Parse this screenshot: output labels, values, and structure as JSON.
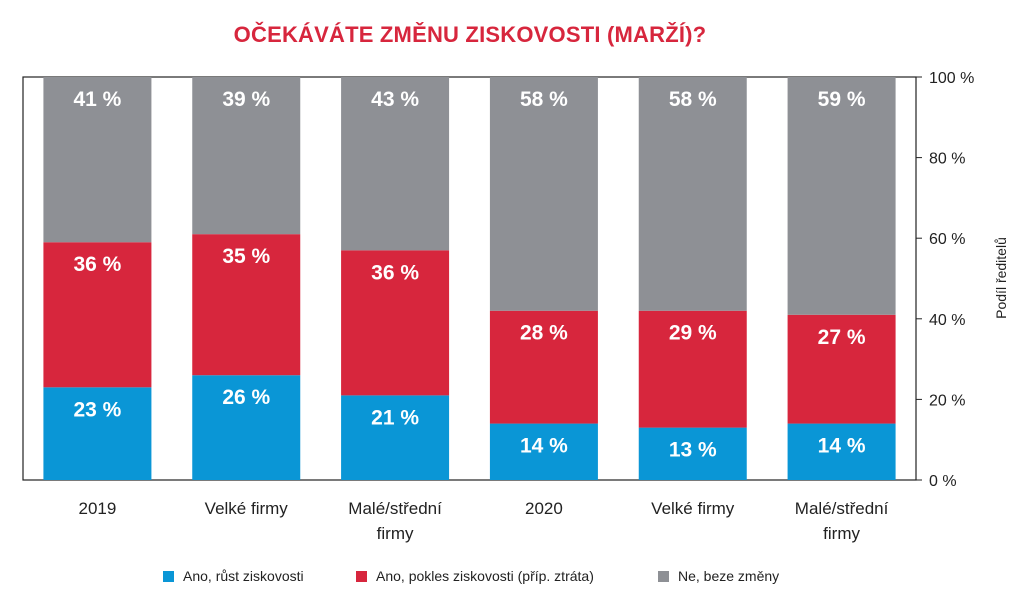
{
  "chart_data": {
    "type": "bar",
    "stacked": true,
    "title": "OČEKÁVÁTE ZMĚNU ZISKOVOSTI (MARŽÍ)?",
    "ylabel": "Podíl ředitelů",
    "ylim": [
      0,
      100
    ],
    "yticks": [
      "0 %",
      "20 %",
      "40 %",
      "60 %",
      "80 %",
      "100 %"
    ],
    "categories": [
      [
        "2019"
      ],
      [
        "Velké firmy"
      ],
      [
        "Malé/střední",
        "firmy"
      ],
      [
        "2020"
      ],
      [
        "Velké firmy"
      ],
      [
        "Malé/střední",
        "firmy"
      ]
    ],
    "series": [
      {
        "name": "Ano, růst ziskovosti",
        "color": "#0a96d6",
        "values": [
          23,
          26,
          21,
          14,
          13,
          14
        ],
        "labels": [
          "23 %",
          "26 %",
          "21 %",
          "14 %",
          "13 %",
          "14 %"
        ]
      },
      {
        "name": "Ano, pokles ziskovosti (příp. ztráta)",
        "color": "#d7263d",
        "values": [
          36,
          35,
          36,
          28,
          29,
          27
        ],
        "labels": [
          "36 %",
          "35 %",
          "36 %",
          "28 %",
          "29 %",
          "27 %"
        ]
      },
      {
        "name": "Ne, beze změny",
        "color": "#8e9095",
        "values": [
          41,
          39,
          43,
          58,
          58,
          59
        ],
        "labels": [
          "41 %",
          "39 %",
          "43 %",
          "58 %",
          "58 %",
          "59 %"
        ]
      }
    ],
    "legend_position": "bottom"
  }
}
